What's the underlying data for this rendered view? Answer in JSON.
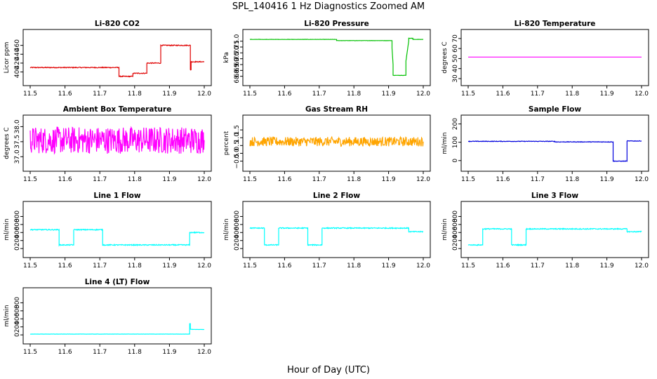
{
  "figure": {
    "title": "SPL_140416  1 Hz Diagnostics Zoomed AM",
    "xlabel": "Hour of Day (UTC)"
  },
  "chart_data": [
    {
      "type": "line",
      "title": "Li-820 CO2",
      "ylabel": "Licor ppm",
      "color": "#e00000",
      "xlim": [
        11.5,
        12.0
      ],
      "ylim": [
        385,
        480
      ],
      "xticks": [
        11.5,
        11.6,
        11.7,
        11.8,
        11.9,
        12.0
      ],
      "yticks": [
        400,
        420,
        440,
        460
      ],
      "series": [
        {
          "x": [
            11.5,
            11.755,
            11.755,
            11.795,
            11.795,
            11.835,
            11.835,
            11.875,
            11.875,
            11.96,
            11.96,
            11.962,
            11.962,
            12.0
          ],
          "y": [
            410,
            410,
            390,
            390,
            397,
            397,
            420,
            420,
            460,
            460,
            405,
            405,
            423,
            423
          ],
          "noise": 1
        }
      ]
    },
    {
      "type": "line",
      "title": "Li-820 Pressure",
      "ylabel": "kPa",
      "color": "#00c000",
      "xlim": [
        11.5,
        12.0
      ],
      "ylim": [
        67.8,
        71.4
      ],
      "xticks": [
        11.5,
        11.6,
        11.7,
        11.8,
        11.9,
        12.0
      ],
      "yticks": [
        68.0,
        68.5,
        69.0,
        69.5,
        70.0,
        70.5,
        71.0
      ],
      "series": [
        {
          "x": [
            11.5,
            11.75,
            11.75,
            11.91,
            11.91,
            11.913,
            11.913,
            11.95,
            11.95,
            11.958,
            11.958,
            11.97,
            11.97,
            12.0
          ],
          "y": [
            71.15,
            71.15,
            71.05,
            71.05,
            70.4,
            69.0,
            68.08,
            68.08,
            69.3,
            71.0,
            71.25,
            71.25,
            71.15,
            71.15
          ],
          "noise": 0.01
        }
      ]
    },
    {
      "type": "line",
      "title": "Li-820 Temperature",
      "ylabel": "degrees C",
      "color": "#ff00ff",
      "xlim": [
        11.5,
        12.0
      ],
      "ylim": [
        30,
        72
      ],
      "xticks": [
        11.5,
        11.6,
        11.7,
        11.8,
        11.9,
        12.0
      ],
      "yticks": [
        30,
        40,
        50,
        60,
        70
      ],
      "series": [
        {
          "x": [
            11.5,
            12.0
          ],
          "y": [
            51.5,
            51.5
          ],
          "noise": 0
        }
      ]
    },
    {
      "type": "line",
      "title": "Ambient Box Temperature",
      "ylabel": "degrees C",
      "color": "#ff00ff",
      "xlim": [
        11.5,
        12.0
      ],
      "ylim": [
        36.75,
        38.15
      ],
      "xticks": [
        11.5,
        11.6,
        11.7,
        11.8,
        11.9,
        12.0
      ],
      "yticks": [
        37.0,
        37.5,
        38.0
      ],
      "series": [
        {
          "x": [
            11.5,
            12.0
          ],
          "y": [
            37.55,
            37.55
          ],
          "noise": 0.45
        }
      ]
    },
    {
      "type": "line",
      "title": "Gas Stream RH",
      "ylabel": "percent",
      "color": "#ffa500",
      "xlim": [
        11.5,
        12.0
      ],
      "ylim": [
        -0.7,
        2.0
      ],
      "xticks": [
        11.5,
        11.6,
        11.7,
        11.8,
        11.9,
        12.0
      ],
      "yticks": [
        -0.5,
        0.0,
        0.5,
        1.0,
        1.5
      ],
      "series": [
        {
          "x": [
            11.5,
            12.0
          ],
          "y": [
            0.75,
            0.75
          ],
          "noise": 0.3
        }
      ]
    },
    {
      "type": "line",
      "title": "Sample Flow",
      "ylabel": "ml/min",
      "color": "#0000dd",
      "xlim": [
        11.5,
        12.0
      ],
      "ylim": [
        -20,
        210
      ],
      "xticks": [
        11.5,
        11.6,
        11.7,
        11.8,
        11.9,
        12.0
      ],
      "yticks": [
        0,
        100,
        200
      ],
      "series": [
        {
          "x": [
            11.5,
            11.75,
            11.75,
            11.918,
            11.918,
            11.958,
            11.958,
            12.0
          ],
          "y": [
            105,
            105,
            102,
            102,
            -3,
            -3,
            107,
            107
          ],
          "noise": 1.5
        }
      ]
    },
    {
      "type": "line",
      "title": "Line 1 Flow",
      "ylabel": "ml/min",
      "color": "#00ffff",
      "xlim": [
        11.5,
        12.0
      ],
      "ylim": [
        -50,
        1000
      ],
      "xticks": [
        11.5,
        11.6,
        11.7,
        11.8,
        11.9,
        12.0
      ],
      "yticks": [
        0,
        200,
        400,
        600,
        800
      ],
      "series": [
        {
          "x": [
            11.5,
            11.583,
            11.583,
            11.625,
            11.625,
            11.708,
            11.708,
            11.958,
            11.958,
            12.0
          ],
          "y": [
            470,
            470,
            90,
            90,
            470,
            470,
            90,
            90,
            400,
            400
          ],
          "noise": 12
        }
      ]
    },
    {
      "type": "line",
      "title": "Line 2 Flow",
      "ylabel": "ml/min",
      "color": "#00ffff",
      "xlim": [
        11.5,
        12.0
      ],
      "ylim": [
        -50,
        1000
      ],
      "xticks": [
        11.5,
        11.6,
        11.7,
        11.8,
        11.9,
        12.0
      ],
      "yticks": [
        0,
        200,
        400,
        600,
        800
      ],
      "series": [
        {
          "x": [
            11.5,
            11.542,
            11.542,
            11.583,
            11.583,
            11.667,
            11.667,
            11.708,
            11.708,
            11.958,
            11.958,
            12.0
          ],
          "y": [
            510,
            510,
            90,
            90,
            510,
            510,
            90,
            90,
            510,
            510,
            420,
            420
          ],
          "noise": 12
        }
      ]
    },
    {
      "type": "line",
      "title": "Line 3 Flow",
      "ylabel": "ml/min",
      "color": "#00ffff",
      "xlim": [
        11.5,
        12.0
      ],
      "ylim": [
        -50,
        1000
      ],
      "xticks": [
        11.5,
        11.6,
        11.7,
        11.8,
        11.9,
        12.0
      ],
      "yticks": [
        0,
        200,
        400,
        600,
        800
      ],
      "series": [
        {
          "x": [
            11.5,
            11.542,
            11.542,
            11.625,
            11.625,
            11.667,
            11.667,
            11.958,
            11.958,
            12.0
          ],
          "y": [
            90,
            90,
            490,
            490,
            90,
            90,
            490,
            490,
            420,
            420
          ],
          "noise": 12
        }
      ]
    },
    {
      "type": "line",
      "title": "Line 4 (LT) Flow",
      "ylabel": "ml/min",
      "color": "#00ffff",
      "xlim": [
        11.5,
        12.0
      ],
      "ylim": [
        -50,
        1000
      ],
      "xticks": [
        11.5,
        11.6,
        11.7,
        11.8,
        11.9,
        12.0
      ],
      "yticks": [
        0,
        200,
        400,
        600,
        800
      ],
      "series": [
        {
          "x": [
            11.5,
            11.958,
            11.958,
            11.96,
            11.96,
            11.965,
            11.965,
            12.0
          ],
          "y": [
            20,
            20,
            280,
            280,
            140,
            140,
            135,
            135
          ],
          "noise": 2
        }
      ]
    }
  ]
}
